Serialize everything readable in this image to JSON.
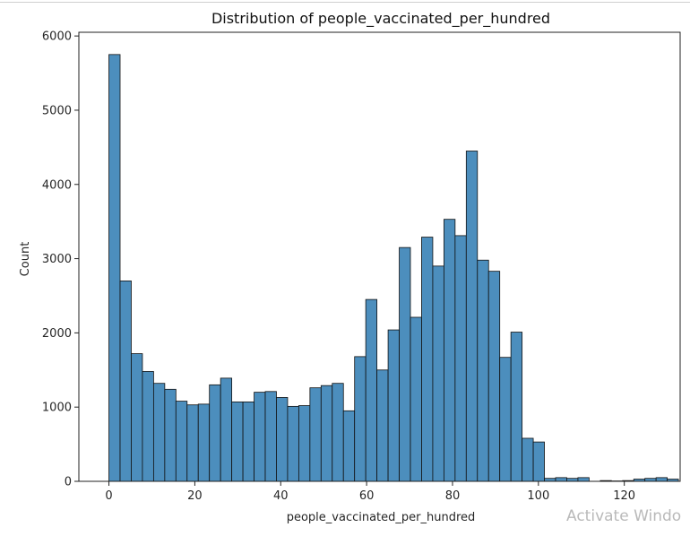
{
  "chart_data": {
    "type": "bar",
    "title": "Distribution of people_vaccinated_per_hundred",
    "xlabel": "people_vaccinated_per_hundred",
    "ylabel": "Count",
    "xlim": [
      -7,
      133
    ],
    "ylim": [
      0,
      6050
    ],
    "xticks": [
      0,
      20,
      40,
      60,
      80,
      100,
      120
    ],
    "yticks": [
      0,
      1000,
      2000,
      3000,
      4000,
      5000,
      6000
    ],
    "bar_color": "#4c8ebd",
    "edge_color": "#111111",
    "bin_start": 0,
    "bin_width": 2.6,
    "values": [
      5750,
      2700,
      1720,
      1480,
      1320,
      1240,
      1080,
      1030,
      1040,
      1300,
      1390,
      1070,
      1070,
      1200,
      1210,
      1130,
      1010,
      1020,
      1260,
      1290,
      1320,
      950,
      1680,
      2450,
      1500,
      2040,
      3150,
      2210,
      3290,
      2900,
      3530,
      3310,
      4450,
      2980,
      2830,
      1670,
      2010,
      580,
      530,
      40,
      50,
      40,
      50,
      0,
      10,
      5,
      10,
      30,
      40,
      50,
      30
    ]
  },
  "watermark": "Activate Windo"
}
